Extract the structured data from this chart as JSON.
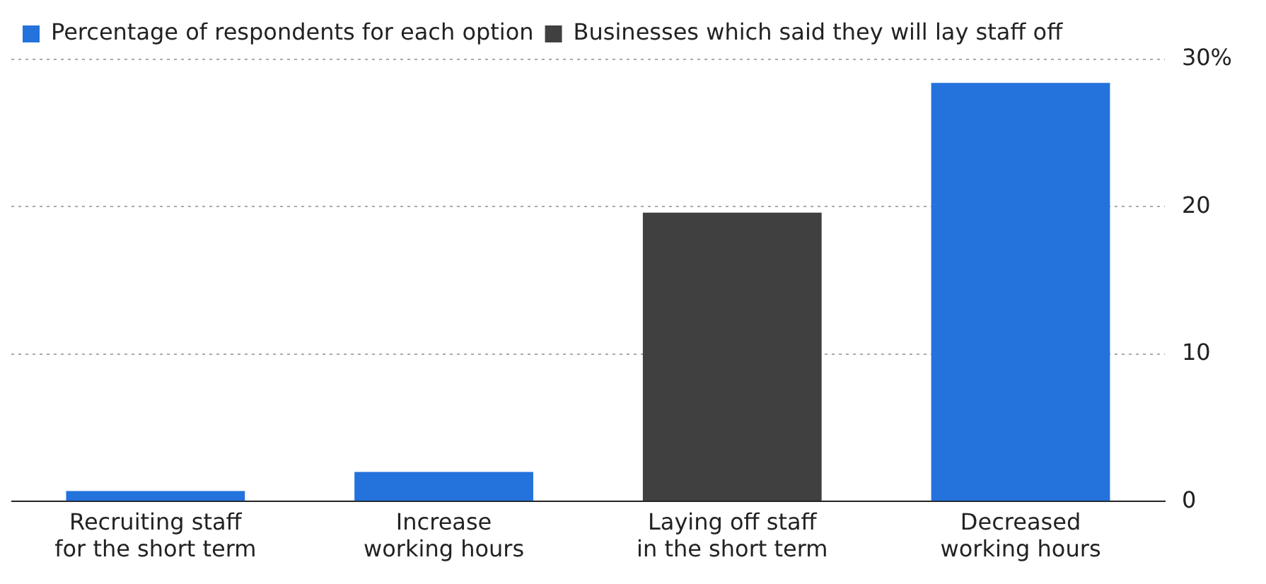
{
  "chart_data": {
    "type": "bar",
    "stacked": true,
    "categories": [
      "Recruiting staff for the short term",
      "Increase working hours",
      "Laying off staff in the short term",
      "Decreased working hours"
    ],
    "series": [
      {
        "name": "Percentage of respondents for each option",
        "color": "#2472dc",
        "values": [
          0.7,
          2.0,
          null,
          28.4
        ]
      },
      {
        "name": "Businesses which said they will lay staff off",
        "color": "#404040",
        "values": [
          null,
          null,
          19.6,
          null
        ]
      }
    ],
    "ylim": [
      0,
      30
    ],
    "yticks": [
      0,
      10,
      20,
      {
        "value": 30,
        "label": "30%"
      }
    ],
    "grid": "y",
    "legend": "top left"
  }
}
